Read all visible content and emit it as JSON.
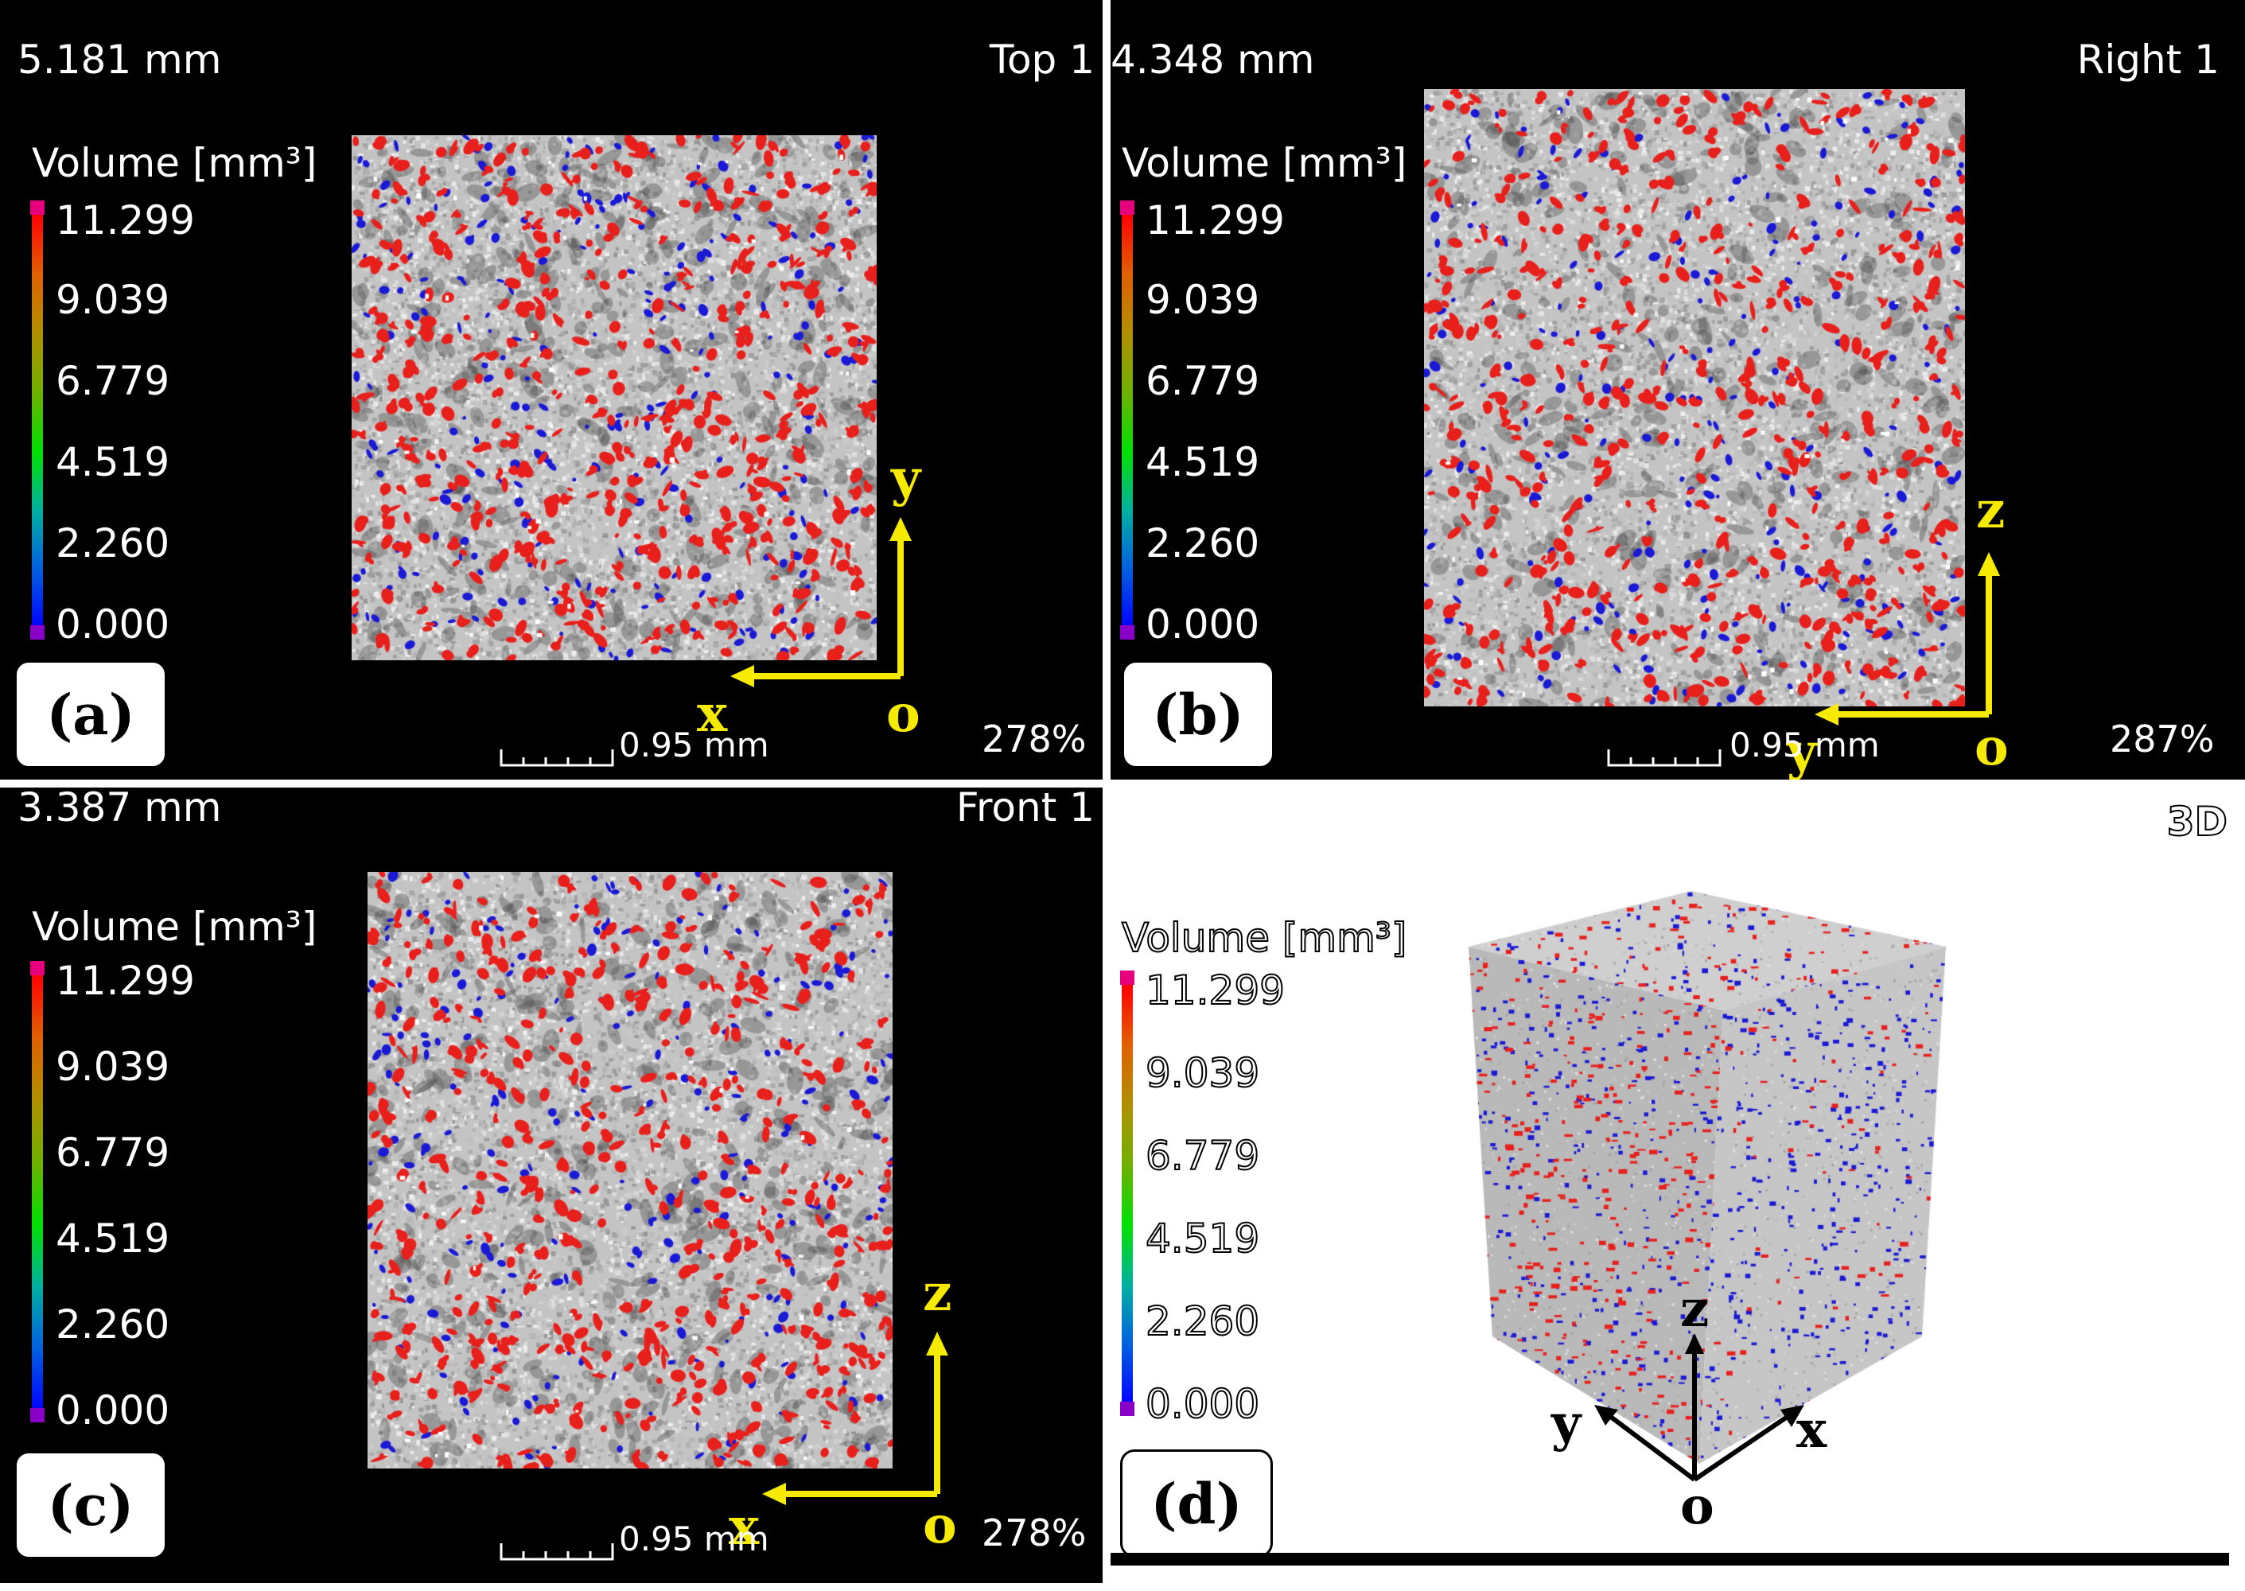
{
  "panels": [
    {
      "id": "a",
      "distance": "5.181 mm",
      "view": "Top 1",
      "label": "(a)",
      "zoom": "278%",
      "scale": "0.95 mm",
      "axis_h": "x",
      "axis_v": "y",
      "origin": "o"
    },
    {
      "id": "b",
      "distance": "4.348 mm",
      "view": "Right 1",
      "label": "(b)",
      "zoom": "287%",
      "scale": "0.95 mm",
      "axis_h": "y",
      "axis_v": "z",
      "origin": "o"
    },
    {
      "id": "c",
      "distance": "3.387 mm",
      "view": "Front 1",
      "label": "(c)",
      "zoom": "278%",
      "scale": "0.95 mm",
      "axis_h": "x",
      "axis_v": "z",
      "origin": "o"
    },
    {
      "id": "d",
      "view": "3D",
      "label": "(d)",
      "axis_x": "x",
      "axis_y": "y",
      "axis_z": "z",
      "origin": "o"
    }
  ],
  "legend": {
    "title": "Volume [mm³]",
    "ticks": [
      "11.299",
      "9.039",
      "6.779",
      "4.519",
      "2.260",
      "0.000"
    ]
  },
  "colors": {
    "pore_red": "#e8201c",
    "pore_blue": "#1a1ad6",
    "matrix_gray": "#c4c4c4",
    "axis_yellow": "#f5ea00",
    "top_marker": "#e6007e",
    "bottom_marker": "#8a00c8"
  }
}
